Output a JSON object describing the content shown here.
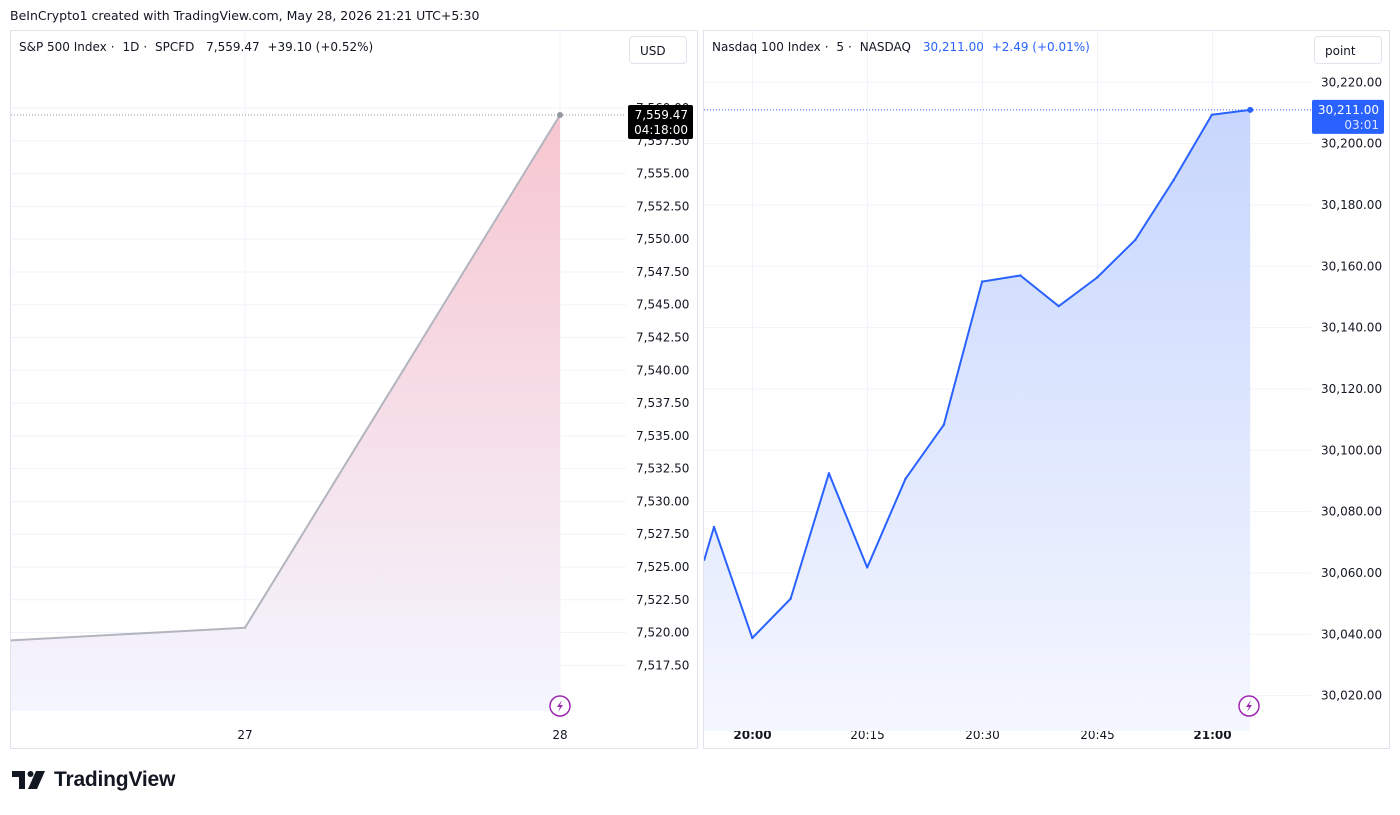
{
  "credit": "BeInCrypto1 created with TradingView.com, May 28, 2026 21:21 UTC+5:30",
  "logo_text": "TradingView",
  "charts": {
    "left": {
      "title": "S&P 500 Index",
      "interval": "1D",
      "exchange": "SPCFD",
      "price": "7,559.47",
      "change": "+39.10 (+0.52%)",
      "unit": "USD",
      "countdown": "04:18:00",
      "line_color": "#b2b5be",
      "fill_top": "#f7c6d0",
      "fill_bottom": "#f4f6ff"
    },
    "right": {
      "title": "Nasdaq 100 Index",
      "interval": "5",
      "exchange": "NASDAQ",
      "price": "30,211.00",
      "change": "+2.49 (+0.01%)",
      "unit": "point",
      "countdown": "03:01",
      "line_color": "#2962ff",
      "fill_top": "#c7d6fd",
      "fill_bottom": "#f5f7ff"
    }
  },
  "chart_data": [
    {
      "type": "area",
      "title": "S&P 500 Index · 1D · SPCFD",
      "x_ticks": [
        "27",
        "28"
      ],
      "y_ticks": [
        "7,560.00",
        "7,557.50",
        "7,555.00",
        "7,552.50",
        "7,550.00",
        "7,547.50",
        "7,545.00",
        "7,542.50",
        "7,540.00",
        "7,537.50",
        "7,535.00",
        "7,532.50",
        "7,530.00",
        "7,527.50",
        "7,525.00",
        "7,522.50",
        "7,520.00",
        "7,517.50"
      ],
      "ylim": [
        7516.0,
        7561.3
      ],
      "x": [
        "26",
        "27",
        "28"
      ],
      "values": [
        7519.4,
        7520.37,
        7559.47
      ],
      "last_value": 7559.47,
      "grid": true
    },
    {
      "type": "area",
      "title": "Nasdaq 100 Index · 5 · NASDAQ",
      "x_ticks": [
        "20:00",
        "20:15",
        "20:30",
        "20:45",
        "21:00"
      ],
      "bold_x_ticks": [
        "20:00",
        "21:00"
      ],
      "y_ticks": [
        "30,220.00",
        "30,200.00",
        "30,180.00",
        "30,160.00",
        "30,140.00",
        "30,120.00",
        "30,100.00",
        "30,080.00",
        "30,060.00",
        "30,040.00",
        "30,020.00"
      ],
      "ylim": [
        30015.0,
        30224.0
      ],
      "x": [
        "19:55",
        "20:00",
        "20:05",
        "20:10",
        "20:15",
        "20:20",
        "20:25",
        "20:30",
        "20:35",
        "20:40",
        "20:45",
        "20:50",
        "20:55",
        "21:00",
        "21:05"
      ],
      "values": [
        30075.0,
        30038.8,
        30051.6,
        30092.5,
        30061.8,
        30090.7,
        30108.3,
        30155.0,
        30157.0,
        30147.0,
        30156.3,
        30168.6,
        30188.1,
        30209.4,
        30211.0
      ],
      "first_partial_value": 30064.0,
      "last_value": 30211.0,
      "grid": true
    }
  ]
}
